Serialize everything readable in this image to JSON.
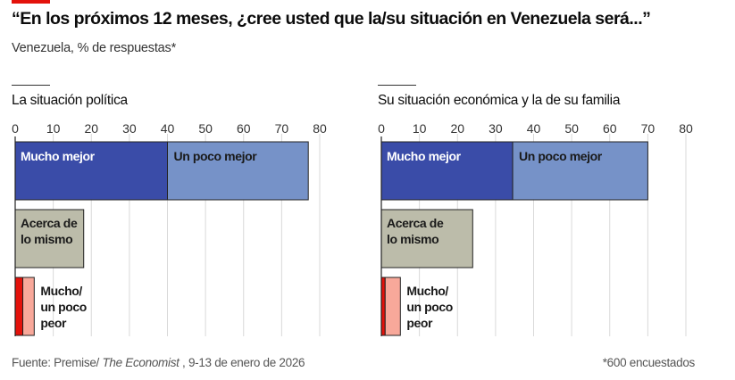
{
  "title": "“En los próximos 12 meses, ¿cree usted que la/su situación en Venezuela será...”",
  "subtitle": "Venezuela, % de respuestas*",
  "footer": {
    "source_prefix": "Fuente: Premise/ ",
    "source_italic": "The Economist",
    "source_suffix": " , 9-13 de enero de 2026",
    "note": "*600 encuestados"
  },
  "colors": {
    "mucho_mejor": "#3a4ca8",
    "un_poco_mejor": "#7692c8",
    "igual": "#bcbcaa",
    "mucho_peor": "#e3120b",
    "un_poco_peor": "#f8a89a",
    "accent": "#e3120b"
  },
  "chart_data": [
    {
      "type": "bar",
      "orientation": "horizontal-stacked",
      "title": "La situación política",
      "xlim": [
        0,
        80
      ],
      "ticks": [
        "0",
        "10",
        "20",
        "30",
        "40",
        "50",
        "60",
        "70",
        "80"
      ],
      "grid": true,
      "rows": [
        {
          "segments": [
            {
              "label": "Mucho mejor",
              "value": 40
            },
            {
              "label": "Un poco mejor",
              "value": 37
            }
          ]
        },
        {
          "segments": [
            {
              "label": "Acerca de lo mismo",
              "value": 18
            }
          ]
        },
        {
          "segments": [
            {
              "label": "",
              "value": 2
            },
            {
              "label": "Mucho/ un poco peor",
              "value": 3
            }
          ]
        }
      ]
    },
    {
      "type": "bar",
      "orientation": "horizontal-stacked",
      "title": "Su situación económica y la de su familia",
      "xlim": [
        0,
        80
      ],
      "ticks": [
        "0",
        "10",
        "20",
        "30",
        "40",
        "50",
        "60",
        "70",
        "80"
      ],
      "grid": true,
      "rows": [
        {
          "segments": [
            {
              "label": "Mucho mejor",
              "value": 34.5
            },
            {
              "label": "Un poco mejor",
              "value": 35.5
            }
          ]
        },
        {
          "segments": [
            {
              "label": "Acerca de lo mismo",
              "value": 24
            }
          ]
        },
        {
          "segments": [
            {
              "label": "",
              "value": 1
            },
            {
              "label": "Mucho/ un poco peor",
              "value": 4
            }
          ]
        }
      ]
    }
  ]
}
